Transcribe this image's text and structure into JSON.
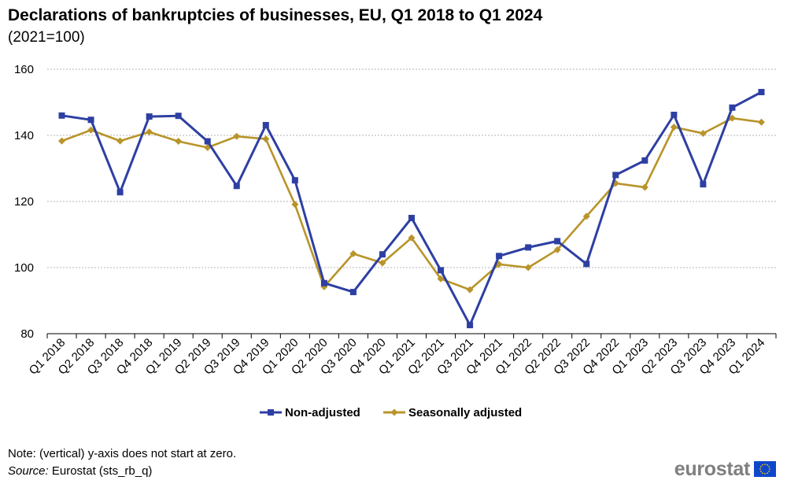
{
  "title": "Declarations of bankruptcies of businesses, EU, Q1 2018 to Q1 2024",
  "subtitle": "(2021=100)",
  "note": "Note: (vertical) y-axis  does not start at zero.",
  "source_label": "Source:",
  "source_text": " Eurostat (sts_rb_q)",
  "logo_text": "eurostat",
  "colors": {
    "non_adjusted": "#2e3fa3",
    "seasonally_adjusted": "#b8942a",
    "grid": "#b3b3b3"
  },
  "chart_data": {
    "type": "line",
    "title": "Declarations of bankruptcies of businesses, EU, Q1 2018 to Q1 2024",
    "subtitle": "(2021=100)",
    "ylim": [
      80,
      160
    ],
    "yticks": [
      80,
      100,
      120,
      140,
      160
    ],
    "grid": true,
    "legend": "bottom",
    "categories": [
      "Q1 2018",
      "Q2 2018",
      "Q3 2018",
      "Q4 2018",
      "Q1 2019",
      "Q2 2019",
      "Q3 2019",
      "Q4 2019",
      "Q1 2020",
      "Q2 2020",
      "Q3 2020",
      "Q4 2020",
      "Q1 2021",
      "Q2 2021",
      "Q3 2021",
      "Q4 2021",
      "Q1 2022",
      "Q2 2022",
      "Q3 2022",
      "Q4 2022",
      "Q1 2023",
      "Q2 2023",
      "Q3 2023",
      "Q4 2023",
      "Q1 2024"
    ],
    "series": [
      {
        "name": "Non-adjusted",
        "marker": "square",
        "values": [
          146.0,
          144.7,
          122.8,
          145.7,
          145.9,
          138.2,
          124.7,
          143.1,
          126.4,
          95.3,
          92.6,
          104.0,
          115.0,
          99.2,
          82.6,
          103.5,
          106.1,
          108.0,
          101.1,
          128.0,
          132.4,
          146.2,
          125.2,
          148.4,
          153.1
        ]
      },
      {
        "name": "Seasonally adjusted",
        "marker": "diamond",
        "values": [
          138.3,
          141.6,
          138.3,
          141.0,
          138.2,
          136.3,
          139.7,
          138.9,
          119.1,
          94.2,
          104.2,
          101.4,
          109.0,
          96.6,
          93.3,
          101.0,
          100.0,
          105.4,
          115.5,
          125.5,
          124.3,
          142.5,
          140.6,
          145.2,
          144.0
        ]
      }
    ]
  }
}
